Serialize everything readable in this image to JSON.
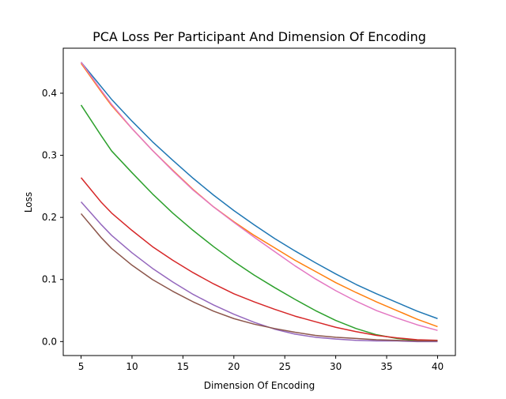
{
  "chart_data": {
    "type": "line",
    "title": "PCA Loss Per Participant And Dimension Of Encoding",
    "xlabel": "Dimension Of Encoding",
    "ylabel": "Loss",
    "xlim": [
      3.25,
      41.75
    ],
    "ylim": [
      -0.0225,
      0.4725
    ],
    "xticks": [
      5,
      10,
      15,
      20,
      25,
      30,
      35,
      40
    ],
    "yticks": [
      0.0,
      0.1,
      0.2,
      0.3,
      0.4
    ],
    "xtick_labels": [
      "5",
      "10",
      "15",
      "20",
      "25",
      "30",
      "35",
      "40"
    ],
    "ytick_labels": [
      "0.0",
      "0.1",
      "0.2",
      "0.3",
      "0.4"
    ],
    "grid": false,
    "legend": "none",
    "x": [
      5,
      7,
      8,
      10,
      12,
      14,
      16,
      18,
      20,
      22,
      24,
      26,
      28,
      30,
      32,
      34,
      36,
      38,
      40
    ],
    "series": [
      {
        "color": "#1f77b4",
        "values": [
          0.45,
          0.41,
          0.39,
          0.355,
          0.322,
          0.292,
          0.263,
          0.236,
          0.211,
          0.188,
          0.166,
          0.146,
          0.127,
          0.109,
          0.092,
          0.077,
          0.063,
          0.049,
          0.037
        ]
      },
      {
        "color": "#ff7f0e",
        "values": [
          0.448,
          0.402,
          0.38,
          0.343,
          0.308,
          0.276,
          0.245,
          0.217,
          0.193,
          0.171,
          0.151,
          0.131,
          0.113,
          0.095,
          0.079,
          0.064,
          0.05,
          0.036,
          0.024
        ]
      },
      {
        "color": "#2ca02c",
        "values": [
          0.381,
          0.331,
          0.307,
          0.272,
          0.238,
          0.207,
          0.179,
          0.153,
          0.129,
          0.107,
          0.087,
          0.068,
          0.05,
          0.034,
          0.021,
          0.011,
          0.005,
          0.002,
          0.001
        ]
      },
      {
        "color": "#d62728",
        "values": [
          0.264,
          0.224,
          0.207,
          0.179,
          0.153,
          0.131,
          0.111,
          0.093,
          0.077,
          0.064,
          0.052,
          0.041,
          0.032,
          0.023,
          0.016,
          0.01,
          0.006,
          0.003,
          0.002
        ]
      },
      {
        "color": "#9467bd",
        "values": [
          0.225,
          0.188,
          0.171,
          0.143,
          0.118,
          0.096,
          0.076,
          0.059,
          0.044,
          0.031,
          0.02,
          0.012,
          0.007,
          0.004,
          0.002,
          0.001,
          0.001,
          0.0,
          0.0
        ]
      },
      {
        "color": "#8c564b",
        "values": [
          0.206,
          0.167,
          0.15,
          0.123,
          0.1,
          0.081,
          0.064,
          0.049,
          0.037,
          0.028,
          0.021,
          0.015,
          0.01,
          0.007,
          0.005,
          0.003,
          0.002,
          0.001,
          0.001
        ]
      },
      {
        "color": "#e377c2",
        "values": [
          0.45,
          0.404,
          0.382,
          0.343,
          0.308,
          0.275,
          0.244,
          0.217,
          0.192,
          0.168,
          0.145,
          0.122,
          0.101,
          0.082,
          0.065,
          0.05,
          0.038,
          0.027,
          0.018
        ]
      }
    ]
  }
}
